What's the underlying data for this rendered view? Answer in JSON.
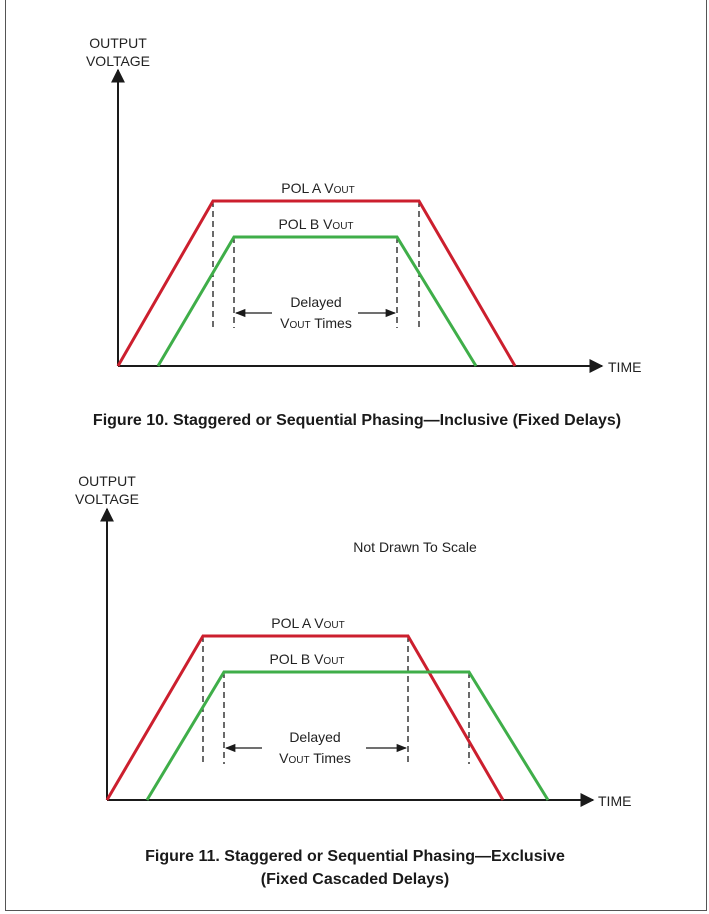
{
  "figures": [
    {
      "y_label_line1": "OUTPUT",
      "y_label_line2": "VOLTAGE",
      "x_label": "TIME",
      "trace_a": {
        "prefix": "POL A V",
        "subscript": "OUT"
      },
      "trace_b": {
        "prefix": "POL B V",
        "subscript": "OUT"
      },
      "delay_label_line1": "Delayed",
      "delay_label_line2": {
        "prefix": "V",
        "subscript": "OUT",
        "suffix": " Times"
      },
      "caption_lines": [
        "Figure 10. Staggered or Sequential Phasing—Inclusive (Fixed Delays)"
      ]
    },
    {
      "y_label_line1": "OUTPUT",
      "y_label_line2": "VOLTAGE",
      "x_label": "TIME",
      "note": "Not Drawn To Scale",
      "trace_a": {
        "prefix": "POL A V",
        "subscript": "OUT"
      },
      "trace_b": {
        "prefix": "POL B V",
        "subscript": "OUT"
      },
      "delay_label_line1": "Delayed",
      "delay_label_line2": {
        "prefix": "V",
        "subscript": "OUT",
        "suffix": " Times"
      },
      "caption_lines": [
        "Figure 11. Staggered or Sequential Phasing—Exclusive",
        "(Fixed Cascaded Delays)"
      ]
    }
  ],
  "colors": {
    "pol_a": "#cc1f2e",
    "pol_b": "#3fae49",
    "axis": "#1a1a1a"
  }
}
